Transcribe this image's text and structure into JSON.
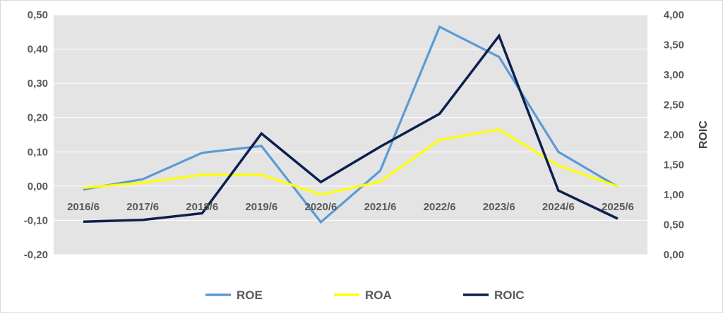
{
  "chart_data": {
    "type": "line",
    "title": "",
    "xlabel": "",
    "ylabel": "",
    "y2label": "ROIC",
    "categories": [
      "2016/6",
      "2017/6",
      "2018/6",
      "2019/6",
      "2020/6",
      "2021/6",
      "2022/6",
      "2023/6",
      "2024/6",
      "2025/6"
    ],
    "ylim": [
      -0.2,
      0.5
    ],
    "y2lim": [
      0,
      4
    ],
    "yticks": [
      "-0,20",
      "-0,10",
      "0,00",
      "0,10",
      "0,20",
      "0,30",
      "0,40",
      "0,50"
    ],
    "y2ticks": [
      "0,00",
      "0,50",
      "1,00",
      "1,50",
      "2,00",
      "2,50",
      "3,00",
      "3,50",
      "4,00"
    ],
    "grid": true,
    "legend": "bottom",
    "plot_background": "#e4e4e4",
    "series": [
      {
        "name": "ROE",
        "axis": "left",
        "color": "#5b9bd5",
        "values": [
          -0.01,
          0.02,
          0.097,
          0.117,
          -0.105,
          0.045,
          0.465,
          0.377,
          0.1,
          -0.002
        ]
      },
      {
        "name": "ROA",
        "axis": "left",
        "color": "#ffff00",
        "values": [
          -0.005,
          0.01,
          0.033,
          0.033,
          -0.025,
          0.013,
          0.135,
          0.165,
          0.06,
          -0.001
        ]
      },
      {
        "name": "ROIC",
        "axis": "right",
        "color": "#0d1f4f",
        "values": [
          0.55,
          0.58,
          0.69,
          2.02,
          1.21,
          1.8,
          2.35,
          3.65,
          1.07,
          0.6
        ]
      }
    ]
  }
}
